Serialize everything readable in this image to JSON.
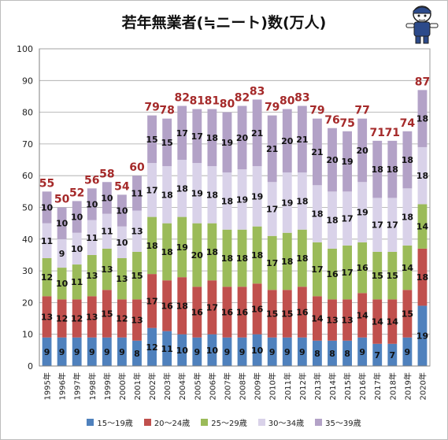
{
  "chart_data": {
    "type": "bar",
    "stacked": true,
    "title": "若年無業者(≒ニート)数(万人)",
    "categories": [
      "1995年",
      "1996年",
      "1997年",
      "1998年",
      "1999年",
      "2000年",
      "2001年",
      "2002年",
      "2003年",
      "2004年",
      "2005年",
      "2006年",
      "2007年",
      "2008年",
      "2009年",
      "2010年",
      "2011年",
      "2012年",
      "2013年",
      "2014年",
      "2015年",
      "2016年",
      "2017年",
      "2018年",
      "2019年",
      "2020年"
    ],
    "yticks": [
      "0",
      "10",
      "20",
      "30",
      "40",
      "50",
      "60",
      "70",
      "80",
      "90",
      "100"
    ],
    "ylim": [
      0,
      100
    ],
    "grid": true,
    "legend_position": "bottom",
    "series": [
      {
        "name": "15～19歳",
        "color": "#4f81bd",
        "values": [
          9,
          9,
          9,
          9,
          9,
          9,
          8,
          12,
          11,
          10,
          9,
          10,
          9,
          9,
          10,
          9,
          9,
          9,
          8,
          8,
          8,
          9,
          7,
          7,
          9,
          19
        ]
      },
      {
        "name": "20～24歳",
        "color": "#c0504d",
        "values": [
          13,
          12,
          12,
          13,
          15,
          12,
          13,
          17,
          16,
          18,
          16,
          17,
          16,
          16,
          16,
          15,
          15,
          16,
          14,
          13,
          13,
          14,
          14,
          14,
          15,
          18
        ]
      },
      {
        "name": "25～29歳",
        "color": "#9bbb59",
        "values": [
          12,
          10,
          11,
          13,
          13,
          13,
          15,
          18,
          18,
          19,
          20,
          18,
          18,
          18,
          18,
          17,
          18,
          18,
          17,
          16,
          17,
          16,
          15,
          15,
          14,
          14
        ]
      },
      {
        "name": "30～34歳",
        "color": "#d9d2e9",
        "values": [
          11,
          9,
          10,
          11,
          11,
          10,
          13,
          17,
          18,
          18,
          19,
          18,
          18,
          19,
          19,
          17,
          19,
          18,
          18,
          18,
          17,
          19,
          17,
          17,
          18,
          18
        ]
      },
      {
        "name": "35～39歳",
        "color": "#b3a2c7",
        "values": [
          10,
          10,
          10,
          10,
          10,
          10,
          11,
          15,
          15,
          17,
          17,
          18,
          19,
          20,
          21,
          21,
          20,
          21,
          21,
          20,
          19,
          20,
          18,
          18,
          18,
          18
        ]
      }
    ],
    "totals": [
      55,
      50,
      52,
      56,
      58,
      54,
      60,
      79,
      78,
      82,
      81,
      81,
      80,
      82,
      83,
      79,
      80,
      83,
      79,
      76,
      75,
      77,
      71,
      71,
      74,
      87
    ],
    "total_label_color": "#a52a2a"
  }
}
